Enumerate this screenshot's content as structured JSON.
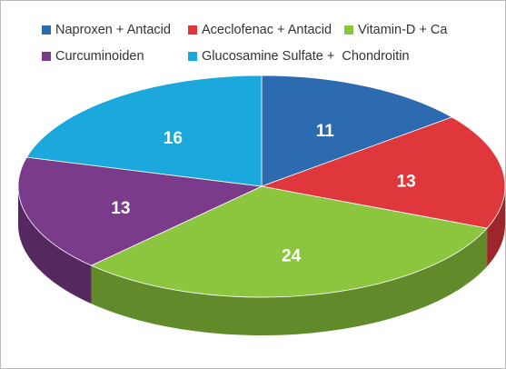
{
  "chart_data": {
    "type": "pie",
    "categories": [
      "Naproxen + Antacid",
      "Aceclofenac + Antacid",
      "Vitamin-D + Ca",
      "Curcuminoiden",
      "Glucosamine Sulfate +  Chondroitin"
    ],
    "values": [
      11,
      13,
      24,
      13,
      16
    ],
    "colors": [
      "#2d6bb0",
      "#e0373c",
      "#8cc63e",
      "#7a3b8a",
      "#1ba8dc"
    ],
    "legend": "top"
  }
}
